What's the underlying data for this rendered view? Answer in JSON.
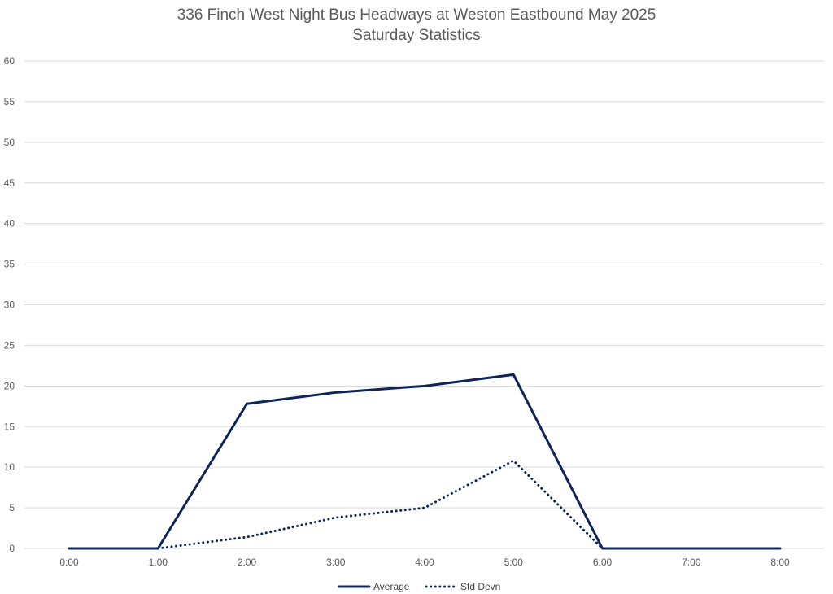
{
  "chart_data": {
    "type": "line",
    "title": "336 Finch West Night Bus Headways at Weston Eastbound May 2025",
    "subtitle": "Saturday Statistics",
    "xlabel": "",
    "ylabel": "",
    "categories": [
      "0:00",
      "1:00",
      "2:00",
      "3:00",
      "4:00",
      "5:00",
      "6:00",
      "7:00",
      "8:00"
    ],
    "ylim": [
      0,
      60
    ],
    "yticks": [
      0,
      5,
      10,
      15,
      20,
      25,
      30,
      35,
      40,
      45,
      50,
      55,
      60
    ],
    "grid": true,
    "legend_position": "bottom",
    "series": [
      {
        "name": "Average",
        "style": "solid",
        "color": "#0f2557",
        "values": [
          0,
          0,
          17.8,
          19.2,
          20.0,
          21.4,
          0,
          0,
          0
        ]
      },
      {
        "name": "Std Devn",
        "style": "dotted",
        "color": "#0f2557",
        "values": [
          null,
          0,
          1.4,
          3.8,
          5.0,
          10.8,
          0,
          null,
          null
        ]
      }
    ]
  }
}
